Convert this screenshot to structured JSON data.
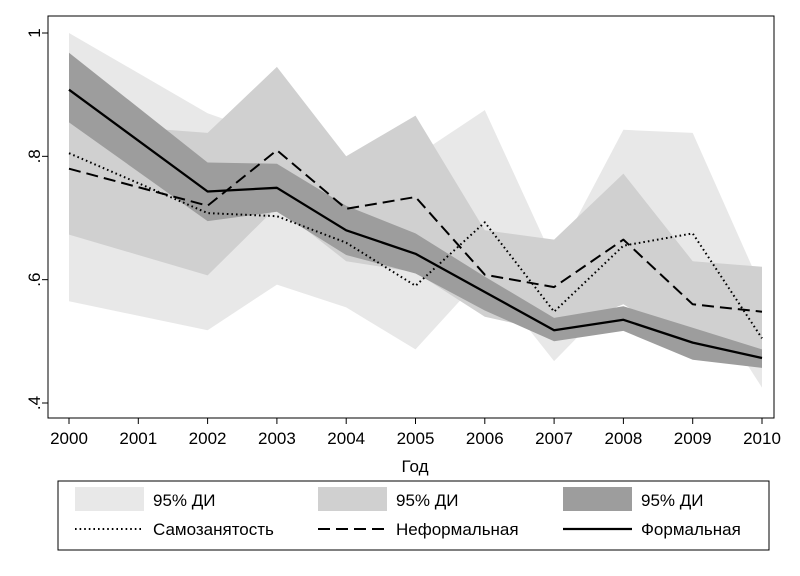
{
  "chart_data": {
    "type": "line",
    "title": "",
    "xlabel": "Год",
    "ylabel": "",
    "x": [
      2000,
      2001,
      2002,
      2003,
      2004,
      2005,
      2006,
      2007,
      2008,
      2009,
      2010
    ],
    "x_ticks": [
      "2000",
      "2001",
      "2002",
      "2003",
      "2004",
      "2005",
      "2006",
      "2007",
      "2008",
      "2009",
      "2010"
    ],
    "ylim": [
      0.4,
      1.0
    ],
    "y_ticks": [
      {
        "value": 0.4,
        "label": ".4"
      },
      {
        "value": 0.6,
        "label": ".6"
      },
      {
        "value": 0.8,
        "label": ".8"
      },
      {
        "value": 1.0,
        "label": "1"
      }
    ],
    "grid": false,
    "legend_placement": "bottom",
    "bands": [
      {
        "label": "95% ДИ",
        "color": "#e8e8e8",
        "x": [
          2000,
          2002,
          2003,
          2004,
          2005,
          2006,
          2007,
          2008,
          2009,
          2010
        ],
        "lower": [
          0.565,
          0.518,
          0.592,
          0.555,
          0.487,
          0.61,
          0.468,
          0.583,
          0.6,
          0.425
        ],
        "upper": [
          1.0,
          0.87,
          0.83,
          0.77,
          0.8,
          0.875,
          0.63,
          0.843,
          0.838,
          0.585
        ]
      },
      {
        "label": "95% ДИ",
        "color": "#d0d0d0",
        "x": [
          2000,
          2002,
          2003,
          2004,
          2005,
          2006,
          2007,
          2008,
          2009,
          2010
        ],
        "lower": [
          0.673,
          0.607,
          0.718,
          0.63,
          0.612,
          0.54,
          0.515,
          0.56,
          0.49,
          0.48
        ],
        "upper": [
          0.855,
          0.838,
          0.945,
          0.8,
          0.866,
          0.68,
          0.665,
          0.772,
          0.63,
          0.621
        ]
      },
      {
        "label": "95% ДИ",
        "color": "#9d9d9d",
        "x": [
          2000,
          2002,
          2003,
          2004,
          2005,
          2006,
          2007,
          2008,
          2009,
          2010
        ],
        "lower": [
          0.855,
          0.695,
          0.71,
          0.64,
          0.61,
          0.55,
          0.5,
          0.517,
          0.47,
          0.457
        ],
        "upper": [
          0.968,
          0.79,
          0.788,
          0.72,
          0.675,
          0.605,
          0.538,
          0.557,
          0.522,
          0.487
        ]
      }
    ],
    "series": [
      {
        "name": "Самозанятость",
        "style": "dotted",
        "x": [
          2000,
          2002,
          2003,
          2004,
          2005,
          2006,
          2007,
          2008,
          2009,
          2010
        ],
        "values": [
          0.805,
          0.708,
          0.703,
          0.66,
          0.59,
          0.693,
          0.548,
          0.655,
          0.675,
          0.505
        ]
      },
      {
        "name": "Неформальная",
        "style": "dashed",
        "x": [
          2000,
          2002,
          2003,
          2004,
          2005,
          2006,
          2007,
          2008,
          2009,
          2010
        ],
        "values": [
          0.78,
          0.72,
          0.81,
          0.715,
          0.734,
          0.608,
          0.588,
          0.665,
          0.56,
          0.548
        ]
      },
      {
        "name": "Формальная",
        "style": "solid",
        "x": [
          2000,
          2002,
          2003,
          2004,
          2005,
          2006,
          2007,
          2008,
          2009,
          2010
        ],
        "values": [
          0.908,
          0.743,
          0.749,
          0.68,
          0.642,
          0.58,
          0.518,
          0.535,
          0.498,
          0.473
        ]
      }
    ]
  }
}
